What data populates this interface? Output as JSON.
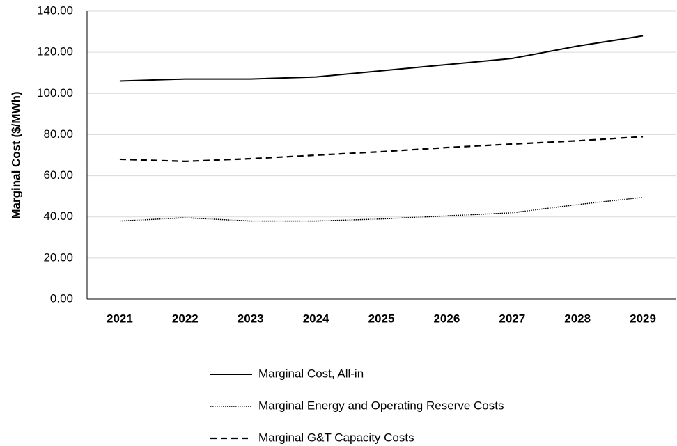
{
  "chart_data": {
    "type": "line",
    "y_label": "Marginal Cost ($/MWh)",
    "categories": [
      "2021",
      "2022",
      "2023",
      "2024",
      "2025",
      "2026",
      "2027",
      "2028",
      "2029"
    ],
    "series": [
      {
        "name": "Marginal Cost, All-in",
        "color": "#000000",
        "style": "solid",
        "values": [
          106,
          107,
          107,
          108,
          111,
          114,
          117,
          123,
          128
        ]
      },
      {
        "name": "Marginal Energy and Operating Reserve Costs",
        "color": "#000000",
        "style": "dotted",
        "values": [
          38,
          39.6,
          38,
          38,
          39,
          40.5,
          42,
          46,
          49.5
        ]
      },
      {
        "name": "Marginal G&T Capacity Costs",
        "color": "#000000",
        "style": "dashed",
        "values": [
          68,
          67,
          68.3,
          70,
          71.7,
          73.7,
          75.4,
          77,
          79
        ]
      }
    ],
    "ylim": [
      0,
      140
    ],
    "yticks": [
      {
        "value": 0,
        "label": "0.00"
      },
      {
        "value": 20,
        "label": "20.00"
      },
      {
        "value": 40,
        "label": "40.00"
      },
      {
        "value": 60,
        "label": "60.00"
      },
      {
        "value": 80,
        "label": "80.00"
      },
      {
        "value": 100,
        "label": "100.00"
      },
      {
        "value": 120,
        "label": "120.00"
      },
      {
        "value": 140,
        "label": "140.00"
      }
    ],
    "grid": true,
    "legend": "bottom"
  }
}
